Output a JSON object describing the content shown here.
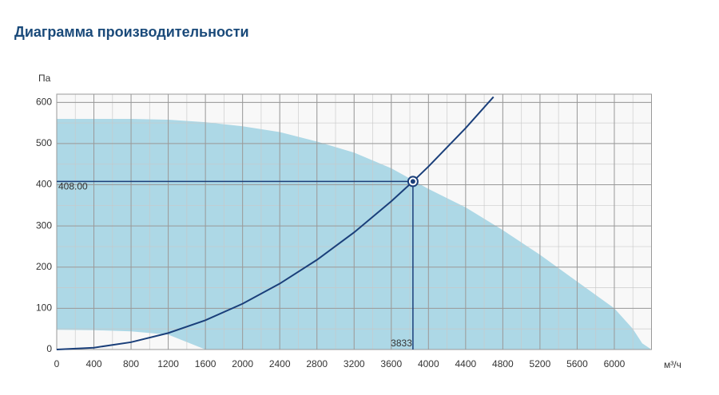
{
  "chart_data": {
    "type": "performance",
    "title": "Диаграмма производительности",
    "y_label": "Па",
    "x_label": "м³/ч",
    "xlim": [
      0,
      6400
    ],
    "ylim": [
      0,
      620
    ],
    "xticks": [
      0,
      400,
      800,
      1200,
      1600,
      2000,
      2400,
      2800,
      3200,
      3600,
      4000,
      4400,
      4800,
      5200,
      5600,
      6000
    ],
    "yticks": [
      0,
      100,
      200,
      300,
      400,
      500,
      600
    ],
    "x_minor_step": 200,
    "y_minor_step": 50,
    "grid": true,
    "area": {
      "color": "#add8e6",
      "x": [
        0,
        400,
        800,
        1200,
        1600,
        2000,
        2400,
        2800,
        3200,
        3600,
        4000,
        4400,
        4800,
        5200,
        5600,
        6000,
        6200,
        6300,
        6400
      ],
      "upper": [
        560,
        560,
        560,
        558,
        552,
        542,
        528,
        505,
        478,
        440,
        390,
        345,
        290,
        230,
        165,
        100,
        50,
        15,
        0
      ],
      "lower": [
        48,
        47,
        44,
        36,
        0,
        0,
        0,
        0,
        0,
        0,
        0,
        0,
        0,
        0,
        0,
        0,
        0,
        0,
        0
      ]
    },
    "series": [
      {
        "color": "#1a3f7a",
        "x": [
          0,
          400,
          800,
          1200,
          1600,
          2000,
          2400,
          2800,
          3200,
          3600,
          3833,
          4000,
          4400,
          4700
        ],
        "values": [
          0,
          4.4,
          17.8,
          40,
          71.1,
          111.1,
          160,
          217.7,
          284.4,
          359.9,
          408,
          444.3,
          537.6,
          613.4
        ]
      }
    ],
    "point": {
      "x": 3833,
      "y": 408,
      "y_label": "408.00",
      "color": "#1a3f7a"
    }
  }
}
